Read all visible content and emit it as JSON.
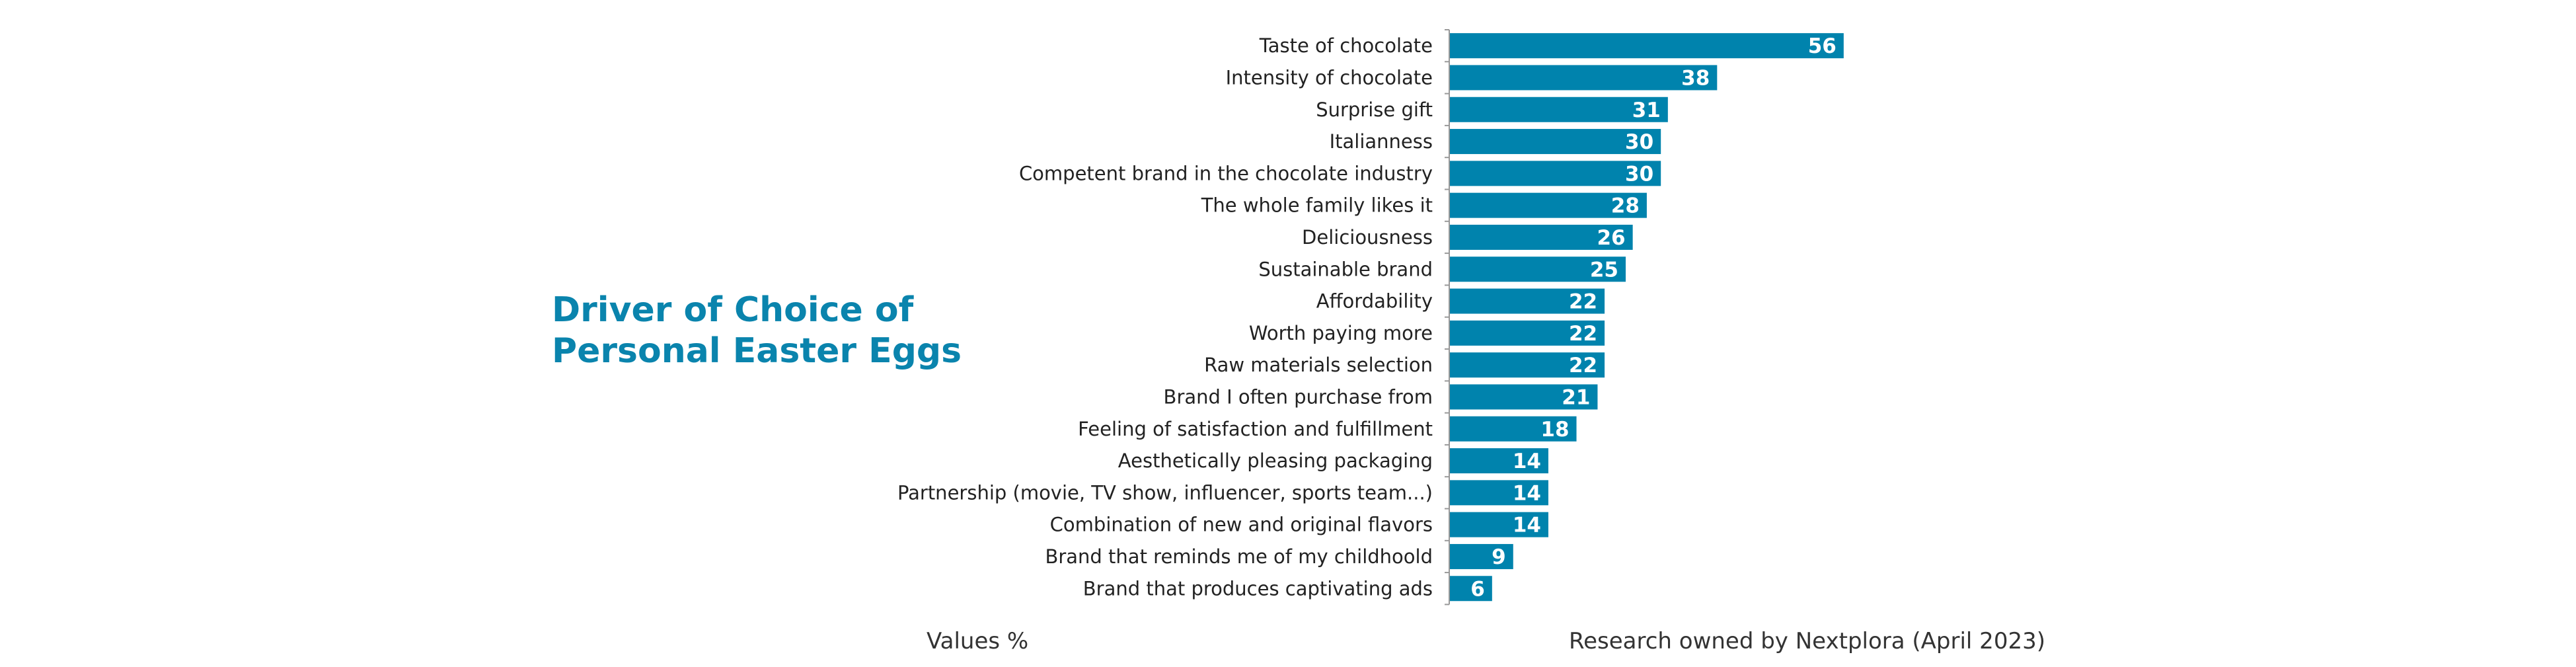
{
  "title_lines": [
    "Driver of Choice of",
    "Personal Easter Eggs"
  ],
  "footer": {
    "units": "Values %",
    "source": "Research owned by Nextplora (April 2023)"
  },
  "colors": {
    "bar": "#0083ad",
    "title": "#0a84ad"
  },
  "chart_data": {
    "type": "bar",
    "orientation": "horizontal",
    "title": "Driver of Choice of Personal Easter Eggs",
    "xlabel": "Values %",
    "ylabel": "",
    "xlim": [
      0,
      60
    ],
    "grid": false,
    "categories": [
      "Taste of chocolate",
      "Intensity of chocolate",
      "Surprise gift",
      "Italianness",
      "Competent brand in the chocolate industry",
      "The whole family likes it",
      "Deliciousness",
      "Sustainable brand",
      "Affordability",
      "Worth paying more",
      "Raw materials selection",
      "Brand I often purchase from",
      "Feeling of satisfaction and fulfillment",
      "Aesthetically pleasing packaging",
      "Partnership (movie, TV show, influencer, sports team...)",
      "Combination of new and original flavors",
      "Brand that reminds me of my childhoold",
      "Brand that produces captivating ads"
    ],
    "values": [
      56,
      38,
      31,
      30,
      30,
      28,
      26,
      25,
      22,
      22,
      22,
      21,
      18,
      14,
      14,
      14,
      9,
      6
    ]
  }
}
